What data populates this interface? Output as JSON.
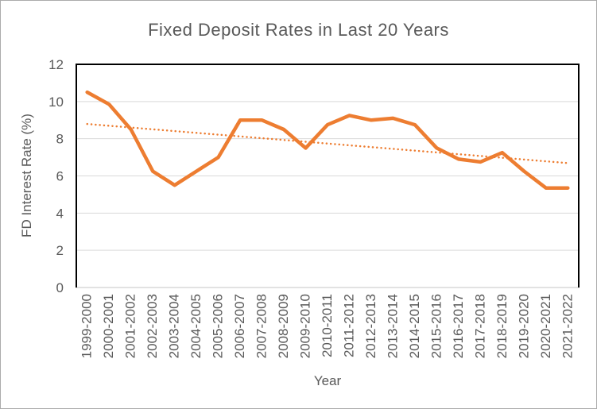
{
  "chart_data": {
    "type": "line",
    "title": "Fixed Deposit Rates in Last 20 Years",
    "xlabel": "Year",
    "ylabel": "FD Interest Rate (%)",
    "categories": [
      "1999-2000",
      "2000-2001",
      "2001-2002",
      "2002-2003",
      "2003-2004",
      "2004-2005",
      "2005-2006",
      "2006-2007",
      "2007-2008",
      "2008-2009",
      "2009-2010",
      "2010-2011",
      "2011-2012",
      "2012-2013",
      "2013-2014",
      "2014-2015",
      "2015-2016",
      "2016-2017",
      "2017-2018",
      "2018-2019",
      "2019-2020",
      "2020-2021",
      "2021-2022"
    ],
    "series": [
      {
        "name": "FD Interest Rate (%)",
        "values": [
          10.5,
          9.85,
          8.5,
          6.25,
          5.5,
          6.25,
          7.0,
          9.0,
          9.0,
          8.5,
          7.5,
          8.75,
          9.25,
          9.0,
          9.1,
          8.75,
          7.5,
          6.9,
          6.75,
          7.25,
          6.25,
          5.35,
          5.35
        ]
      }
    ],
    "trendline": {
      "type": "linear",
      "style": "dotted",
      "start_value": 8.79,
      "end_value": 6.68
    },
    "ylim": [
      0,
      12
    ],
    "yticks": [
      0,
      2,
      4,
      6,
      8,
      10,
      12
    ],
    "grid": true,
    "legend": "none",
    "x_tick_rotation_deg": -90,
    "colors": {
      "series": "#ED7D31",
      "trendline": "#ED7D31",
      "gridline": "#D9D9D9",
      "plot_border": "#000000",
      "category_axis": "#D9D9D9",
      "text": "#595959",
      "background": "#FFFFFF",
      "chart_border": "#ABABAB"
    }
  }
}
